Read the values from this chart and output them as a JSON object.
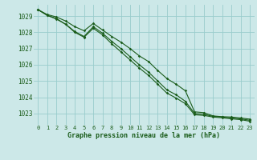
{
  "title": "Graphe pression niveau de la mer (hPa)",
  "background_color": "#cce8e8",
  "grid_color": "#99cccc",
  "line_color": "#1a5c1a",
  "x_labels": [
    "0",
    "1",
    "2",
    "3",
    "4",
    "5",
    "6",
    "7",
    "8",
    "9",
    "10",
    "11",
    "12",
    "13",
    "14",
    "15",
    "16",
    "17",
    "18",
    "19",
    "20",
    "21",
    "22",
    "23"
  ],
  "xlim": [
    -0.5,
    23.5
  ],
  "ylim": [
    1022.3,
    1029.7
  ],
  "yticks": [
    1023,
    1024,
    1025,
    1026,
    1027,
    1028,
    1029
  ],
  "series": [
    [
      1029.4,
      1029.1,
      1028.95,
      1028.7,
      1028.35,
      1028.1,
      1028.55,
      1028.15,
      1027.75,
      1027.4,
      1027.0,
      1026.55,
      1026.2,
      1025.65,
      1025.15,
      1024.8,
      1024.4,
      1023.1,
      1023.05,
      1022.85,
      1022.8,
      1022.78,
      1022.72,
      1022.65
    ],
    [
      1029.4,
      1029.05,
      1028.85,
      1028.5,
      1028.05,
      1027.75,
      1028.35,
      1027.95,
      1027.45,
      1027.0,
      1026.5,
      1026.0,
      1025.55,
      1025.0,
      1024.45,
      1024.15,
      1023.75,
      1023.0,
      1022.95,
      1022.82,
      1022.78,
      1022.72,
      1022.67,
      1022.58
    ],
    [
      1029.4,
      1029.05,
      1028.82,
      1028.5,
      1028.0,
      1027.7,
      1028.25,
      1027.85,
      1027.3,
      1026.8,
      1026.3,
      1025.8,
      1025.35,
      1024.8,
      1024.25,
      1023.95,
      1023.6,
      1022.92,
      1022.88,
      1022.78,
      1022.73,
      1022.67,
      1022.62,
      1022.52
    ]
  ]
}
